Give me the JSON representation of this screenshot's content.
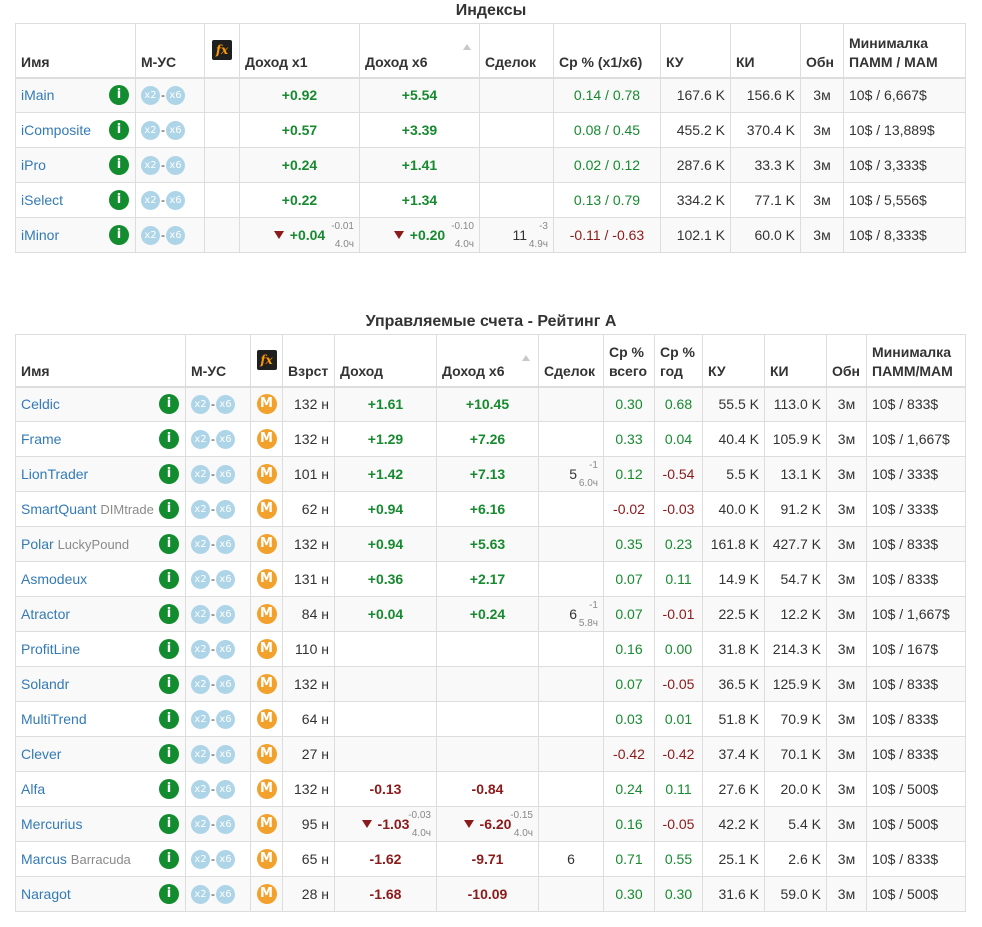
{
  "indices": {
    "title": "Индексы",
    "headers": {
      "name": "Имя",
      "mus": "М-УС",
      "inc1": "Доход x1",
      "inc6": "Доход x6",
      "deals": "Сделок",
      "avg": "Ср % (x1/x6)",
      "ku": "КУ",
      "ki": "КИ",
      "obn": "Обн",
      "min1": "Минималка",
      "min2": "ПАММ / МАМ"
    },
    "rows": [
      {
        "name": "iMain",
        "inc1": "+0.92",
        "inc6": "+5.54",
        "avg": "0.14 / 0.78",
        "ku": "167.6 K",
        "ki": "156.6 K",
        "obn": "3м",
        "min": "10$ / 6,667$"
      },
      {
        "name": "iComposite",
        "inc1": "+0.57",
        "inc6": "+3.39",
        "avg": "0.08 / 0.45",
        "ku": "455.2 K",
        "ki": "370.4 K",
        "obn": "3м",
        "min": "10$ / 13,889$"
      },
      {
        "name": "iPro",
        "inc1": "+0.24",
        "inc6": "+1.41",
        "avg": "0.02 / 0.12",
        "ku": "287.6 K",
        "ki": "33.3 K",
        "obn": "3м",
        "min": "10$ / 3,333$"
      },
      {
        "name": "iSelect",
        "inc1": "+0.22",
        "inc6": "+1.34",
        "avg": "0.13 / 0.79",
        "ku": "334.2 K",
        "ki": "77.1 K",
        "obn": "3м",
        "min": "10$ / 5,556$"
      },
      {
        "name": "iMinor",
        "inc1": "+0.04",
        "inc1_arrow": true,
        "inc1_dtop": "-0.01",
        "inc1_dbot": "4.0ч",
        "inc6": "+0.20",
        "inc6_arrow": true,
        "inc6_dtop": "-0.10",
        "inc6_dbot": "4.0ч",
        "deals": "11",
        "deals_dtop": "-3",
        "deals_dbot": "4.9ч",
        "avg": "-0.11 / -0.63",
        "avg_neg": true,
        "ku": "102.1 K",
        "ki": "60.0 K",
        "obn": "3м",
        "min": "10$ / 8,333$"
      }
    ]
  },
  "managed": {
    "title": "Управляемые счета - Рейтинг A",
    "headers": {
      "name": "Имя",
      "mus": "М-УС",
      "age": "Взрст",
      "inc": "Доход",
      "inc6": "Доход x6",
      "deals": "Сделок",
      "avg1": "Ср %",
      "avg2": "всего",
      "year1": "Ср %",
      "year2": "год",
      "ku": "КУ",
      "ki": "КИ",
      "obn": "Обн",
      "min1": "Минималка",
      "min2": "ПАММ/МАМ"
    },
    "rows": [
      {
        "name": "Celdic",
        "sub": "",
        "age": "132 н",
        "inc": "+1.61",
        "inc6": "+10.45",
        "avg": "0.30",
        "avg_neg": false,
        "year": "0.68",
        "year_neg": false,
        "ku": "55.5 K",
        "ki": "113.0 K",
        "obn": "3м",
        "min": "10$ / 833$"
      },
      {
        "name": "Frame",
        "sub": "",
        "age": "132 н",
        "inc": "+1.29",
        "inc6": "+7.26",
        "avg": "0.33",
        "avg_neg": false,
        "year": "0.04",
        "year_neg": false,
        "ku": "40.4 K",
        "ki": "105.9 K",
        "obn": "3м",
        "min": "10$ / 1,667$"
      },
      {
        "name": "LionTrader",
        "sub": "",
        "age": "101 н",
        "inc": "+1.42",
        "inc6": "+7.13",
        "deals": "5",
        "deals_dtop": "-1",
        "deals_dbot": "6.0ч",
        "avg": "0.12",
        "avg_neg": false,
        "year": "-0.54",
        "year_neg": true,
        "ku": "5.5 K",
        "ki": "13.1 K",
        "obn": "3м",
        "min": "10$ / 333$"
      },
      {
        "name": "SmartQuant",
        "sub": "DIMtrade",
        "age": "62 н",
        "inc": "+0.94",
        "inc6": "+6.16",
        "avg": "-0.02",
        "avg_neg": true,
        "year": "-0.03",
        "year_neg": true,
        "ku": "40.0 K",
        "ki": "91.2 K",
        "obn": "3м",
        "min": "10$ / 333$"
      },
      {
        "name": "Polar",
        "sub": "LuckyPound",
        "age": "132 н",
        "inc": "+0.94",
        "inc6": "+5.63",
        "avg": "0.35",
        "avg_neg": false,
        "year": "0.23",
        "year_neg": false,
        "ku": "161.8 K",
        "ki": "427.7 K",
        "obn": "3м",
        "min": "10$ / 833$"
      },
      {
        "name": "Asmodeux",
        "sub": "",
        "age": "131 н",
        "inc": "+0.36",
        "inc6": "+2.17",
        "avg": "0.07",
        "avg_neg": false,
        "year": "0.11",
        "year_neg": false,
        "ku": "14.9 K",
        "ki": "54.7 K",
        "obn": "3м",
        "min": "10$ / 833$"
      },
      {
        "name": "Atractor",
        "sub": "",
        "age": "84 н",
        "inc": "+0.04",
        "inc6": "+0.24",
        "deals": "6",
        "deals_dtop": "-1",
        "deals_dbot": "5.8ч",
        "avg": "0.07",
        "avg_neg": false,
        "year": "-0.01",
        "year_neg": true,
        "ku": "22.5 K",
        "ki": "12.2 K",
        "obn": "3м",
        "min": "10$ / 1,667$"
      },
      {
        "name": "ProfitLine",
        "sub": "",
        "age": "110 н",
        "avg": "0.16",
        "avg_neg": false,
        "year": "0.00",
        "year_neg": false,
        "ku": "31.8 K",
        "ki": "214.3 K",
        "obn": "3м",
        "min": "10$ / 167$"
      },
      {
        "name": "Solandr",
        "sub": "",
        "age": "132 н",
        "avg": "0.07",
        "avg_neg": false,
        "year": "-0.05",
        "year_neg": true,
        "ku": "36.5 K",
        "ki": "125.9 K",
        "obn": "3м",
        "min": "10$ / 833$"
      },
      {
        "name": "MultiTrend",
        "sub": "",
        "age": "64 н",
        "avg": "0.03",
        "avg_neg": false,
        "year": "0.01",
        "year_neg": false,
        "ku": "51.8 K",
        "ki": "70.9 K",
        "obn": "3м",
        "min": "10$ / 833$"
      },
      {
        "name": "Clever",
        "sub": "",
        "age": "27 н",
        "avg": "-0.42",
        "avg_neg": true,
        "year": "-0.42",
        "year_neg": true,
        "ku": "37.4 K",
        "ki": "70.1 K",
        "obn": "3м",
        "min": "10$ / 833$"
      },
      {
        "name": "Alfa",
        "sub": "",
        "age": "132 н",
        "inc": "-0.13",
        "inc6": "-0.84",
        "avg": "0.24",
        "avg_neg": false,
        "year": "0.11",
        "year_neg": false,
        "ku": "27.6 K",
        "ki": "20.0 K",
        "obn": "3м",
        "min": "10$ / 500$"
      },
      {
        "name": "Mercurius",
        "sub": "",
        "age": "95 н",
        "inc": "-1.03",
        "inc_arrow": true,
        "inc_dtop": "-0.03",
        "inc_dbot": "4.0ч",
        "inc6": "-6.20",
        "inc6_arrow": true,
        "inc6_dtop": "-0.15",
        "inc6_dbot": "4.0ч",
        "avg": "0.16",
        "avg_neg": false,
        "year": "-0.05",
        "year_neg": true,
        "ku": "42.2 K",
        "ki": "5.4 K",
        "obn": "3м",
        "min": "10$ / 500$"
      },
      {
        "name": "Marcus",
        "sub": "Barracuda",
        "age": "65 н",
        "inc": "-1.62",
        "inc6": "-9.71",
        "deals": "6",
        "deals_center": true,
        "avg": "0.71",
        "avg_neg": false,
        "year": "0.55",
        "year_neg": false,
        "ku": "25.1 K",
        "ki": "2.6 K",
        "obn": "3м",
        "min": "10$ / 833$"
      },
      {
        "name": "Naragot",
        "sub": "",
        "age": "28 н",
        "inc": "-1.68",
        "inc6": "-10.09",
        "avg": "0.30",
        "avg_neg": false,
        "year": "0.30",
        "year_neg": false,
        "ku": "31.6 K",
        "ki": "59.0 K",
        "obn": "3м",
        "min": "10$ / 500$"
      }
    ]
  },
  "icons": {
    "info": "info-icon",
    "x2": "x2-icon",
    "x6": "x6-icon",
    "mam": "mam-icon",
    "fx": "fx-icon",
    "sort": "sort-asc-icon",
    "down": "down-arrow-icon"
  },
  "badges": {
    "info": "i",
    "x2": "x2",
    "x6": "x6",
    "mam": "M",
    "fx": "fx",
    "dash": "-"
  },
  "colors": {
    "positive": "#178a30",
    "negative": "#8b1a1a",
    "link": "#337ab7",
    "info_badge": "#128c2e",
    "mam_badge": "#f2a12c",
    "mult_badge": "#aed4e8"
  }
}
